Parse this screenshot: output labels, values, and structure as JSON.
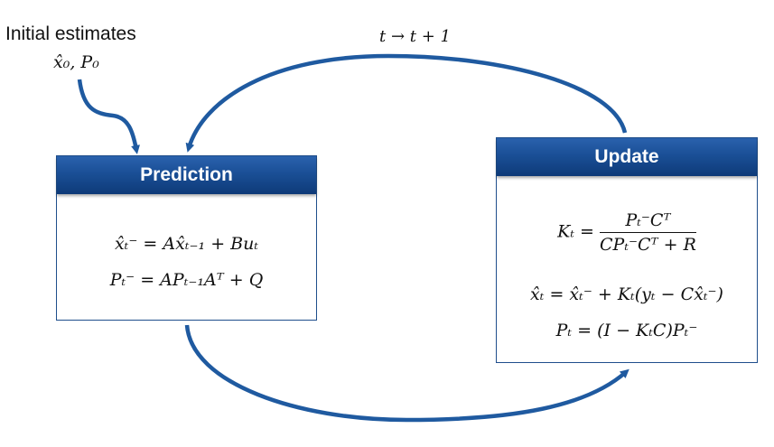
{
  "initial": {
    "label": "Initial estimates",
    "math": "x̂₀, P₀"
  },
  "loop_label": "t → t + 1",
  "prediction": {
    "title": "Prediction",
    "eq1": "x̂ₜ⁻ = Ax̂ₜ₋₁ + Buₜ",
    "eq2": "Pₜ⁻ = APₜ₋₁Aᵀ + Q"
  },
  "update": {
    "title": "Update",
    "gain_lhs": "Kₜ =",
    "gain_num": "Pₜ⁻Cᵀ",
    "gain_den": "CPₜ⁻Cᵀ + R",
    "eq2": "x̂ₜ = x̂ₜ⁻ + Kₜ(yₜ − Cx̂ₜ⁻)",
    "eq3": "Pₜ = (I − KₜC)Pₜ⁻"
  },
  "colors": {
    "arrow": "#1f5aa0",
    "header": "#1a4f96"
  }
}
